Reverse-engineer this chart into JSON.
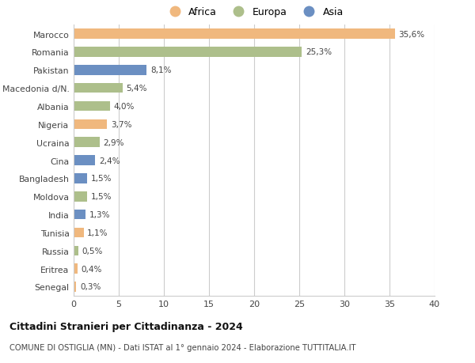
{
  "countries": [
    "Marocco",
    "Romania",
    "Pakistan",
    "Macedonia d/N.",
    "Albania",
    "Nigeria",
    "Ucraina",
    "Cina",
    "Bangladesh",
    "Moldova",
    "India",
    "Tunisia",
    "Russia",
    "Eritrea",
    "Senegal"
  ],
  "values": [
    35.6,
    25.3,
    8.1,
    5.4,
    4.0,
    3.7,
    2.9,
    2.4,
    1.5,
    1.5,
    1.3,
    1.1,
    0.5,
    0.4,
    0.3
  ],
  "labels": [
    "35,6%",
    "25,3%",
    "8,1%",
    "5,4%",
    "4,0%",
    "3,7%",
    "2,9%",
    "2,4%",
    "1,5%",
    "1,5%",
    "1,3%",
    "1,1%",
    "0,5%",
    "0,4%",
    "0,3%"
  ],
  "continents": [
    "Africa",
    "Europa",
    "Asia",
    "Europa",
    "Europa",
    "Africa",
    "Europa",
    "Asia",
    "Asia",
    "Europa",
    "Asia",
    "Africa",
    "Europa",
    "Africa",
    "Africa"
  ],
  "colors": {
    "Africa": "#F0B87E",
    "Europa": "#ADBF8B",
    "Asia": "#6B8FC2"
  },
  "legend_order": [
    "Africa",
    "Europa",
    "Asia"
  ],
  "title_main": "Cittadini Stranieri per Cittadinanza - 2024",
  "title_sub": "COMUNE DI OSTIGLIA (MN) - Dati ISTAT al 1° gennaio 2024 - Elaborazione TUTTITALIA.IT",
  "xlim": [
    0,
    40
  ],
  "xticks": [
    0,
    5,
    10,
    15,
    20,
    25,
    30,
    35,
    40
  ],
  "background_color": "#ffffff",
  "grid_color": "#cccccc"
}
